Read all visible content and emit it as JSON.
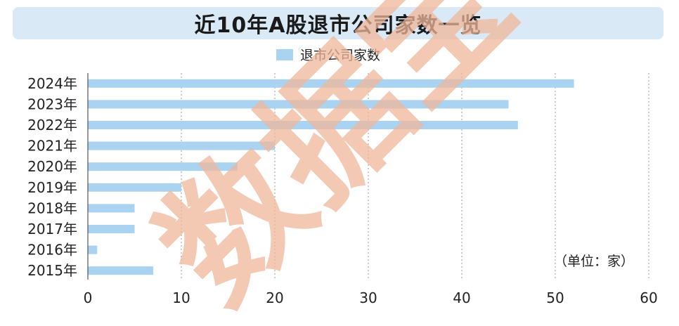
{
  "chart_data": {
    "type": "bar",
    "orientation": "horizontal",
    "title": "近10年A股退市公司家数一览",
    "unit_note": "（单位：家）",
    "categories": [
      "2024年",
      "2023年",
      "2022年",
      "2021年",
      "2020年",
      "2019年",
      "2018年",
      "2017年",
      "2016年",
      "2015年"
    ],
    "series": [
      {
        "name": "退市公司家数",
        "values": [
          52,
          45,
          46,
          20,
          16,
          10,
          5,
          5,
          1,
          7
        ],
        "color": "#a9d3f0"
      }
    ],
    "xlim": [
      0,
      60
    ],
    "xticks": [
      0,
      10,
      20,
      30,
      40,
      50,
      60
    ],
    "grid": "vertical dashed",
    "legend_position": "top-center"
  },
  "watermark": "数据宝",
  "colors": {
    "title_bg": "#d9e9f6",
    "bar": "#a9d3f0",
    "watermark": "#f0b79b"
  }
}
